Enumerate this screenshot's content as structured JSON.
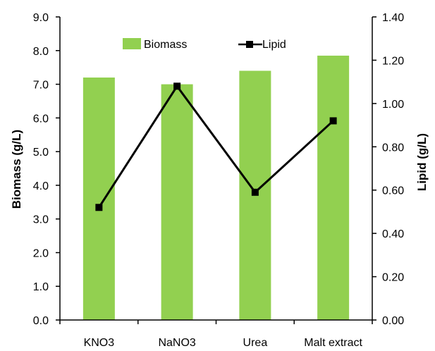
{
  "chart_data": {
    "type": "bar",
    "categories": [
      "KNO3",
      "NaNO3",
      "Urea",
      "Malt extract"
    ],
    "series": [
      {
        "name": "Biomass",
        "type": "bar",
        "axis": "left",
        "values": [
          7.2,
          7.0,
          7.4,
          7.85
        ],
        "color": "#92d050"
      },
      {
        "name": "Lipid",
        "type": "line",
        "axis": "right",
        "values": [
          0.52,
          1.08,
          0.59,
          0.92
        ],
        "color": "#000000",
        "marker": "square"
      }
    ],
    "ylabel": "Biomass (g/L)",
    "ylabel_right": "Lipid (g/L)",
    "ylim": [
      0,
      9
    ],
    "ylim_right": [
      0,
      1.4
    ],
    "yticks": [
      "0.0",
      "1.0",
      "2.0",
      "3.0",
      "4.0",
      "5.0",
      "6.0",
      "7.0",
      "8.0",
      "9.0"
    ],
    "yticks_right": [
      "0.00",
      "0.20",
      "0.40",
      "0.60",
      "0.80",
      "1.00",
      "1.20",
      "1.40"
    ],
    "legend": "top",
    "grid": false
  }
}
